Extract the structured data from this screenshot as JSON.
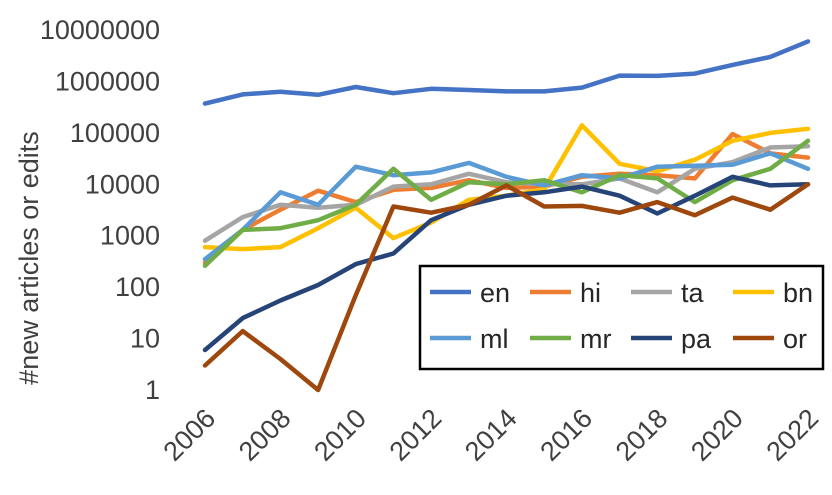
{
  "chart_data": {
    "type": "line",
    "title": "",
    "xlabel": "",
    "ylabel": "#new articles or edits",
    "y_scale": "log",
    "ylim": [
      1,
      10000000
    ],
    "y_ticks": [
      "1",
      "10",
      "100",
      "1000",
      "10000",
      "100000",
      "1000000",
      "10000000"
    ],
    "x_ticks": [
      "2006",
      "2008",
      "2010",
      "2012",
      "2014",
      "2016",
      "2018",
      "2020",
      "2022"
    ],
    "x": [
      2006,
      2007,
      2008,
      2009,
      2010,
      2011,
      2012,
      2013,
      2014,
      2015,
      2016,
      2017,
      2018,
      2019,
      2020,
      2021,
      2022
    ],
    "grid": false,
    "legend_position": "bottom-right",
    "series": [
      {
        "name": "en",
        "color": "#4472C4",
        "values": [
          370000,
          560000,
          630000,
          550000,
          780000,
          590000,
          720000,
          680000,
          640000,
          640000,
          760000,
          1300000,
          1280000,
          1420000,
          2100000,
          3000000,
          6000000
        ]
      },
      {
        "name": "hi",
        "color": "#ED7D31",
        "values": [
          300,
          1300,
          3200,
          7500,
          4500,
          7800,
          8500,
          12000,
          8500,
          9000,
          14000,
          16000,
          15000,
          13000,
          95000,
          40000,
          33000
        ]
      },
      {
        "name": "ta",
        "color": "#A5A5A5",
        "values": [
          800,
          2300,
          4000,
          3500,
          4000,
          9000,
          10000,
          16000,
          11000,
          10000,
          10000,
          13000,
          7000,
          20000,
          27000,
          52000,
          55000
        ]
      },
      {
        "name": "bn",
        "color": "#FFC000",
        "values": [
          600,
          550,
          600,
          1400,
          3500,
          900,
          1800,
          5000,
          6000,
          8000,
          140000,
          25000,
          18000,
          30000,
          70000,
          100000,
          120000
        ]
      },
      {
        "name": "ml",
        "color": "#5B9BD5",
        "values": [
          350,
          1300,
          7000,
          4000,
          22000,
          15000,
          17000,
          26000,
          14000,
          9500,
          15000,
          13000,
          22000,
          23000,
          24000,
          40000,
          20000
        ]
      },
      {
        "name": "mr",
        "color": "#70AD47",
        "values": [
          260,
          1300,
          1400,
          2000,
          4000,
          20000,
          5000,
          11000,
          10000,
          12000,
          7000,
          15000,
          13000,
          4500,
          12000,
          20000,
          70000
        ]
      },
      {
        "name": "pa",
        "color": "#264478",
        "values": [
          6,
          25,
          55,
          110,
          280,
          450,
          2000,
          4000,
          6000,
          7000,
          9000,
          6000,
          2700,
          6000,
          14000,
          9500,
          10000
        ]
      },
      {
        "name": "or",
        "color": "#9E480E",
        "values": [
          3,
          14,
          4,
          1,
          70,
          3700,
          2800,
          4000,
          9500,
          3700,
          3800,
          2800,
          4500,
          2500,
          5500,
          3200,
          10000
        ]
      }
    ]
  }
}
